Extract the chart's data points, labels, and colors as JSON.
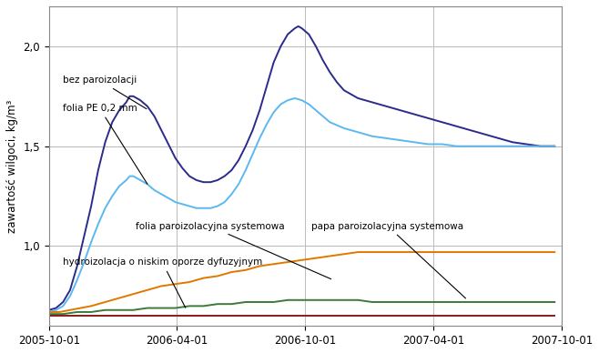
{
  "title": "",
  "ylabel": "zawartość wilgoci, kg/m³",
  "ylim": [
    0.6,
    2.2
  ],
  "yticks": [
    1.0,
    1.5,
    2.0
  ],
  "background_color": "#ffffff",
  "grid_color": "#bbbbbb",
  "series": [
    {
      "name": "bez paroizolacji",
      "color": "#2b2b8c",
      "linewidth": 1.4,
      "points": [
        [
          0,
          0.68
        ],
        [
          10,
          0.69
        ],
        [
          20,
          0.72
        ],
        [
          30,
          0.78
        ],
        [
          40,
          0.9
        ],
        [
          50,
          1.05
        ],
        [
          60,
          1.2
        ],
        [
          70,
          1.38
        ],
        [
          80,
          1.52
        ],
        [
          90,
          1.62
        ],
        [
          100,
          1.68
        ],
        [
          110,
          1.72
        ],
        [
          115,
          1.75
        ],
        [
          120,
          1.75
        ],
        [
          125,
          1.74
        ],
        [
          130,
          1.73
        ],
        [
          140,
          1.7
        ],
        [
          150,
          1.65
        ],
        [
          160,
          1.58
        ],
        [
          170,
          1.51
        ],
        [
          180,
          1.44
        ],
        [
          190,
          1.39
        ],
        [
          200,
          1.35
        ],
        [
          210,
          1.33
        ],
        [
          220,
          1.32
        ],
        [
          230,
          1.32
        ],
        [
          240,
          1.33
        ],
        [
          250,
          1.35
        ],
        [
          260,
          1.38
        ],
        [
          270,
          1.43
        ],
        [
          280,
          1.5
        ],
        [
          290,
          1.58
        ],
        [
          300,
          1.68
        ],
        [
          310,
          1.8
        ],
        [
          320,
          1.92
        ],
        [
          330,
          2.0
        ],
        [
          340,
          2.06
        ],
        [
          350,
          2.09
        ],
        [
          355,
          2.1
        ],
        [
          360,
          2.09
        ],
        [
          370,
          2.06
        ],
        [
          380,
          2.0
        ],
        [
          390,
          1.93
        ],
        [
          400,
          1.87
        ],
        [
          410,
          1.82
        ],
        [
          420,
          1.78
        ],
        [
          440,
          1.74
        ],
        [
          460,
          1.72
        ],
        [
          480,
          1.7
        ],
        [
          500,
          1.68
        ],
        [
          520,
          1.66
        ],
        [
          540,
          1.64
        ],
        [
          560,
          1.62
        ],
        [
          580,
          1.6
        ],
        [
          600,
          1.58
        ],
        [
          620,
          1.56
        ],
        [
          640,
          1.54
        ],
        [
          660,
          1.52
        ],
        [
          680,
          1.51
        ],
        [
          700,
          1.5
        ],
        [
          720,
          1.5
        ]
      ]
    },
    {
      "name": "folia PE 0,2 mm",
      "color": "#5bb8f0",
      "linewidth": 1.4,
      "points": [
        [
          0,
          0.67
        ],
        [
          10,
          0.68
        ],
        [
          20,
          0.7
        ],
        [
          30,
          0.75
        ],
        [
          40,
          0.83
        ],
        [
          50,
          0.92
        ],
        [
          60,
          1.02
        ],
        [
          70,
          1.11
        ],
        [
          80,
          1.19
        ],
        [
          90,
          1.25
        ],
        [
          100,
          1.3
        ],
        [
          110,
          1.33
        ],
        [
          115,
          1.35
        ],
        [
          120,
          1.35
        ],
        [
          130,
          1.33
        ],
        [
          140,
          1.31
        ],
        [
          150,
          1.28
        ],
        [
          160,
          1.26
        ],
        [
          170,
          1.24
        ],
        [
          180,
          1.22
        ],
        [
          190,
          1.21
        ],
        [
          200,
          1.2
        ],
        [
          210,
          1.19
        ],
        [
          220,
          1.19
        ],
        [
          230,
          1.19
        ],
        [
          240,
          1.2
        ],
        [
          250,
          1.22
        ],
        [
          260,
          1.26
        ],
        [
          270,
          1.31
        ],
        [
          280,
          1.38
        ],
        [
          290,
          1.46
        ],
        [
          300,
          1.54
        ],
        [
          310,
          1.61
        ],
        [
          320,
          1.67
        ],
        [
          330,
          1.71
        ],
        [
          340,
          1.73
        ],
        [
          350,
          1.74
        ],
        [
          360,
          1.73
        ],
        [
          370,
          1.71
        ],
        [
          380,
          1.68
        ],
        [
          390,
          1.65
        ],
        [
          400,
          1.62
        ],
        [
          420,
          1.59
        ],
        [
          440,
          1.57
        ],
        [
          460,
          1.55
        ],
        [
          480,
          1.54
        ],
        [
          500,
          1.53
        ],
        [
          520,
          1.52
        ],
        [
          540,
          1.51
        ],
        [
          560,
          1.51
        ],
        [
          580,
          1.5
        ],
        [
          600,
          1.5
        ],
        [
          640,
          1.5
        ],
        [
          700,
          1.5
        ],
        [
          720,
          1.5
        ]
      ]
    },
    {
      "name": "folia paroizolacyjna systemowa",
      "color": "#e07800",
      "linewidth": 1.4,
      "points": [
        [
          0,
          0.67
        ],
        [
          15,
          0.67
        ],
        [
          30,
          0.68
        ],
        [
          45,
          0.69
        ],
        [
          60,
          0.7
        ],
        [
          80,
          0.72
        ],
        [
          100,
          0.74
        ],
        [
          120,
          0.76
        ],
        [
          140,
          0.78
        ],
        [
          160,
          0.8
        ],
        [
          180,
          0.81
        ],
        [
          200,
          0.82
        ],
        [
          220,
          0.84
        ],
        [
          240,
          0.85
        ],
        [
          260,
          0.87
        ],
        [
          280,
          0.88
        ],
        [
          300,
          0.9
        ],
        [
          320,
          0.91
        ],
        [
          340,
          0.92
        ],
        [
          360,
          0.93
        ],
        [
          380,
          0.94
        ],
        [
          400,
          0.95
        ],
        [
          420,
          0.96
        ],
        [
          440,
          0.97
        ],
        [
          460,
          0.97
        ],
        [
          480,
          0.97
        ],
        [
          500,
          0.97
        ],
        [
          520,
          0.97
        ],
        [
          540,
          0.97
        ],
        [
          560,
          0.97
        ],
        [
          580,
          0.97
        ],
        [
          600,
          0.97
        ],
        [
          620,
          0.97
        ],
        [
          640,
          0.97
        ],
        [
          660,
          0.97
        ],
        [
          680,
          0.97
        ],
        [
          700,
          0.97
        ],
        [
          720,
          0.97
        ]
      ]
    },
    {
      "name": "papa paroizolacyjna systemowa",
      "color": "#3a7a3a",
      "linewidth": 1.4,
      "points": [
        [
          0,
          0.66
        ],
        [
          20,
          0.66
        ],
        [
          40,
          0.67
        ],
        [
          60,
          0.67
        ],
        [
          80,
          0.68
        ],
        [
          100,
          0.68
        ],
        [
          120,
          0.68
        ],
        [
          140,
          0.69
        ],
        [
          160,
          0.69
        ],
        [
          180,
          0.69
        ],
        [
          200,
          0.7
        ],
        [
          220,
          0.7
        ],
        [
          240,
          0.71
        ],
        [
          260,
          0.71
        ],
        [
          280,
          0.72
        ],
        [
          300,
          0.72
        ],
        [
          320,
          0.72
        ],
        [
          340,
          0.73
        ],
        [
          360,
          0.73
        ],
        [
          380,
          0.73
        ],
        [
          400,
          0.73
        ],
        [
          420,
          0.73
        ],
        [
          440,
          0.73
        ],
        [
          460,
          0.72
        ],
        [
          480,
          0.72
        ],
        [
          500,
          0.72
        ],
        [
          520,
          0.72
        ],
        [
          540,
          0.72
        ],
        [
          560,
          0.72
        ],
        [
          580,
          0.72
        ],
        [
          600,
          0.72
        ],
        [
          620,
          0.72
        ],
        [
          640,
          0.72
        ],
        [
          660,
          0.72
        ],
        [
          680,
          0.72
        ],
        [
          700,
          0.72
        ],
        [
          720,
          0.72
        ]
      ]
    },
    {
      "name": "hydroizolacja o niskim oporze dyfuzyjnym",
      "color": "#8b1a1a",
      "linewidth": 1.4,
      "points": [
        [
          0,
          0.65
        ],
        [
          30,
          0.65
        ],
        [
          60,
          0.65
        ],
        [
          90,
          0.65
        ],
        [
          120,
          0.65
        ],
        [
          150,
          0.65
        ],
        [
          180,
          0.65
        ],
        [
          210,
          0.65
        ],
        [
          240,
          0.65
        ],
        [
          270,
          0.65
        ],
        [
          300,
          0.65
        ],
        [
          330,
          0.65
        ],
        [
          360,
          0.65
        ],
        [
          390,
          0.65
        ],
        [
          420,
          0.65
        ],
        [
          450,
          0.65
        ],
        [
          480,
          0.65
        ],
        [
          510,
          0.65
        ],
        [
          540,
          0.65
        ],
        [
          570,
          0.65
        ],
        [
          600,
          0.65
        ],
        [
          630,
          0.65
        ],
        [
          660,
          0.65
        ],
        [
          690,
          0.65
        ],
        [
          720,
          0.65
        ]
      ]
    }
  ],
  "start_date": "2005-10-01",
  "xtick_dates": [
    "2005-10-01",
    "2006-04-01",
    "2006-10-01",
    "2007-04-01",
    "2007-10-01"
  ],
  "vline_dates": [
    "2006-04-01",
    "2006-10-01",
    "2007-04-01"
  ],
  "annotation_fontsize": 7.5,
  "axis_fontsize": 8.5
}
